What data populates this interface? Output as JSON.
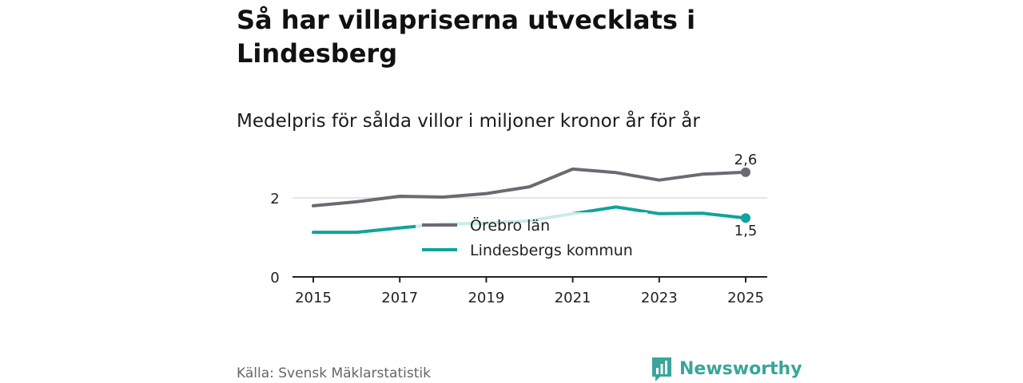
{
  "title": "Så har villapriserna utvecklats i Lindesberg",
  "subtitle": "Medelpris för sålda villor i miljoner kronor år för år",
  "source": "Källa: Svensk Mäklarstatistik",
  "brand": "Newsworthy",
  "colors": {
    "orebro": "#6b6a72",
    "lindesberg": "#10a39a",
    "axis": "#222222",
    "grid": "#dddddd",
    "brand": "#3aa59a"
  },
  "chart_data": {
    "type": "line",
    "x": [
      2015,
      2016,
      2017,
      2018,
      2019,
      2020,
      2021,
      2022,
      2023,
      2024,
      2025
    ],
    "xticks": [
      "2015",
      "2017",
      "2019",
      "2021",
      "2023",
      "2025"
    ],
    "yticks": [
      "0",
      "2"
    ],
    "ylim": [
      0,
      3
    ],
    "series": [
      {
        "name": "Örebro län",
        "values": [
          1.8,
          1.9,
          2.04,
          2.02,
          2.11,
          2.28,
          2.73,
          2.64,
          2.45,
          2.6,
          2.65
        ],
        "end_label": "2,6"
      },
      {
        "name": "Lindesbergs kommun",
        "values": [
          1.13,
          1.13,
          1.24,
          1.34,
          1.36,
          1.42,
          1.6,
          1.77,
          1.6,
          1.61,
          1.49
        ],
        "end_label": "1,5"
      }
    ]
  }
}
